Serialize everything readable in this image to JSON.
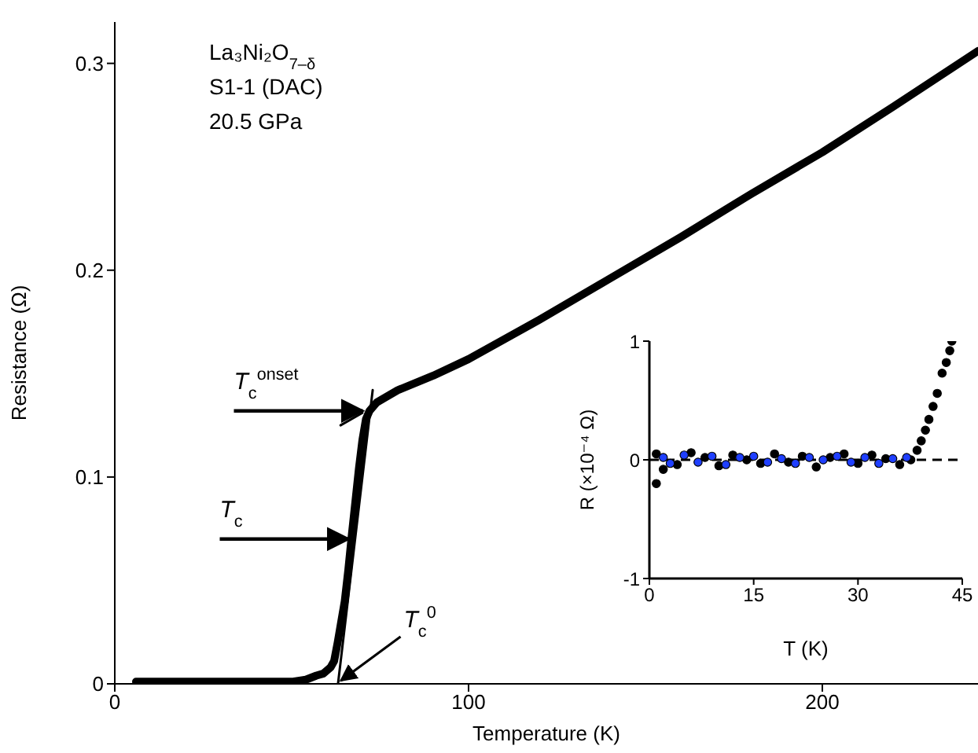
{
  "chart_data": [
    {
      "type": "line",
      "xlabel": "Temperature (K)",
      "ylabel": "Resistance (Ω)",
      "xlim": [
        0,
        244
      ],
      "ylim": [
        0,
        0.32
      ],
      "xticks": [
        0,
        100,
        200
      ],
      "yticks": [
        0,
        0.1,
        0.2,
        0.3
      ],
      "marker": "none",
      "line_style": "solid",
      "annotations": [
        "La₃Ni₂O$_{7–δ}$",
        "S1-1 (DAC)",
        "20.5 GPa",
        {
          "text": "T$_{c}$$^{onset}$",
          "x": 71,
          "y": 0.132
        },
        {
          "text": "T$_{c}$",
          "x": 67,
          "y": 0.07
        },
        {
          "text": "T$_{c}$$^{0}$",
          "x": 63,
          "y": 0
        }
      ],
      "series": [
        {
          "color": "#000000",
          "x": [
            6,
            10,
            20,
            30,
            40,
            50,
            54,
            57,
            59,
            61,
            62,
            63,
            64,
            65,
            66,
            67,
            68,
            69,
            70,
            71,
            72,
            74,
            80,
            90,
            100,
            120,
            140,
            160,
            180,
            200,
            220,
            244
          ],
          "values": [
            0.001,
            0.001,
            0.001,
            0.001,
            0.001,
            0.001,
            0.002,
            0.004,
            0.005,
            0.008,
            0.011,
            0.02,
            0.03,
            0.04,
            0.055,
            0.072,
            0.088,
            0.104,
            0.118,
            0.128,
            0.132,
            0.136,
            0.142,
            0.149,
            0.157,
            0.176,
            0.196,
            0.216,
            0.237,
            0.257,
            0.279,
            0.306
          ]
        },
        {
          "color": "#000000",
          "x": [
            63.1,
            72.9
          ],
          "values": [
            0,
            0.142
          ]
        },
        {
          "color": "#000000",
          "x": [
            63.8,
            70
          ],
          "values": [
            0.125,
            0.131
          ]
        }
      ]
    },
    {
      "type": "scatter",
      "xlabel": "T (K)",
      "ylabel": "R (×10⁻⁴ Ω)",
      "xlim": [
        0,
        45
      ],
      "ylim": [
        -1,
        1
      ],
      "xticks": [
        0,
        15,
        30,
        45
      ],
      "yticks": [
        -1,
        0,
        1
      ],
      "marker": "circle",
      "ref_lines": [
        {
          "axis": "y",
          "value": 0,
          "color": "#000000",
          "line_style": "dashed"
        }
      ],
      "series": [
        {
          "color": "#000000",
          "x": [
            1,
            1,
            2,
            4,
            6,
            8,
            10,
            12,
            14,
            16,
            18,
            20,
            22,
            24,
            26,
            28,
            30,
            32,
            34,
            36,
            37.6,
            38.5,
            39.1,
            39.7,
            40.2,
            40.8,
            41.4,
            42.1,
            42.7,
            43.2,
            43.5
          ],
          "values": [
            -0.2,
            0.05,
            -0.08,
            -0.04,
            0.06,
            0.02,
            -0.05,
            0.04,
            0.0,
            -0.03,
            0.05,
            -0.02,
            0.03,
            -0.06,
            0.02,
            0.05,
            -0.03,
            0.04,
            0.01,
            -0.04,
            0.0,
            0.08,
            0.16,
            0.25,
            0.34,
            0.45,
            0.56,
            0.73,
            0.82,
            0.92,
            1.0
          ]
        },
        {
          "color": "#1f3fff",
          "x": [
            2,
            3,
            5,
            7,
            9,
            11,
            13,
            15,
            17,
            19,
            21,
            23,
            25,
            27,
            29,
            31,
            33,
            35,
            37
          ],
          "values": [
            0.02,
            -0.03,
            0.04,
            -0.02,
            0.03,
            -0.04,
            0.02,
            0.03,
            -0.02,
            0.01,
            -0.03,
            0.02,
            0.0,
            0.03,
            -0.02,
            0.02,
            -0.03,
            0.01,
            0.02
          ]
        }
      ]
    }
  ]
}
